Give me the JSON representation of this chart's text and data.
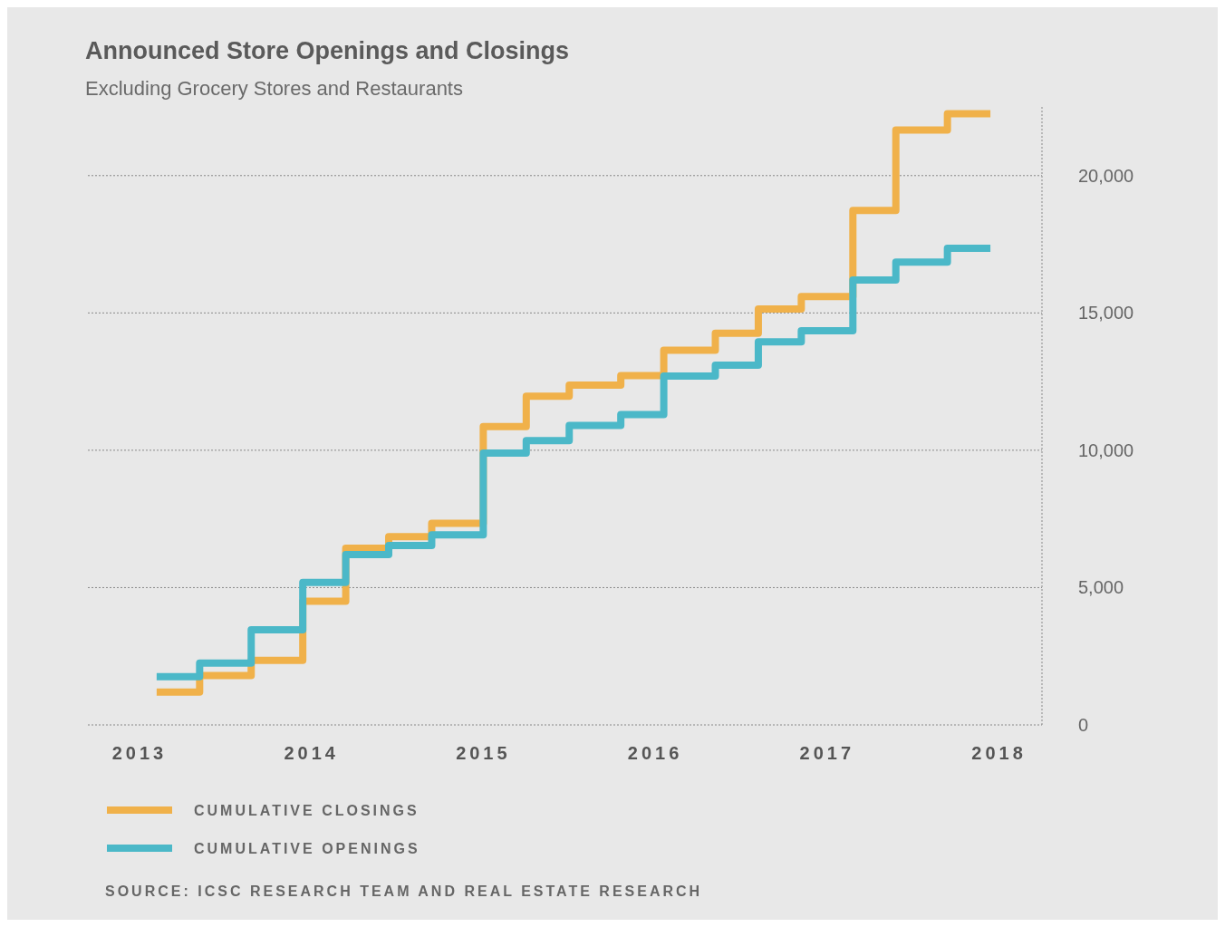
{
  "chart_data": {
    "type": "step",
    "title": "Announced Store Openings and Closings",
    "subtitle": "Excluding Grocery Stores and Restaurants",
    "x": [
      2013.1,
      2013.35,
      2013.65,
      2013.95,
      2014.2,
      2014.45,
      2014.7,
      2015.0,
      2015.25,
      2015.5,
      2015.8,
      2016.05,
      2016.35,
      2016.6,
      2016.85,
      2017.15,
      2017.4,
      2017.7,
      2017.95
    ],
    "series": [
      {
        "name": "CUMULATIVE CLOSINGS",
        "color": "#f0b14a",
        "values": [
          1200,
          1800,
          2350,
          4500,
          6430,
          6850,
          7340,
          10860,
          11970,
          12370,
          12720,
          13640,
          14260,
          15140,
          15600,
          18730,
          21660,
          22250,
          22250
        ]
      },
      {
        "name": "CUMULATIVE OPENINGS",
        "color": "#4bb8c8",
        "values": [
          1760,
          2250,
          3460,
          5190,
          6200,
          6530,
          6920,
          9900,
          10350,
          10900,
          11300,
          12700,
          13100,
          13950,
          14350,
          16200,
          16850,
          17350,
          17350
        ]
      }
    ],
    "xlim": [
      2012.7,
      2018.25
    ],
    "xticks": [
      2013,
      2014,
      2015,
      2016,
      2017,
      2018
    ],
    "ylim": [
      0,
      22500
    ],
    "yticks": [
      0,
      {
        "value": 5000,
        "label": "5,000"
      },
      {
        "value": 10000,
        "label": "10,000"
      },
      {
        "value": 15000,
        "label": "15,000"
      },
      {
        "value": 20000,
        "label": "20,000"
      }
    ],
    "grid": "y",
    "legend": "bottom left",
    "line_style": "solid",
    "annotations": [
      "SOURCE: ICSC RESEARCH TEAM AND REAL ESTATE RESEARCH"
    ]
  }
}
